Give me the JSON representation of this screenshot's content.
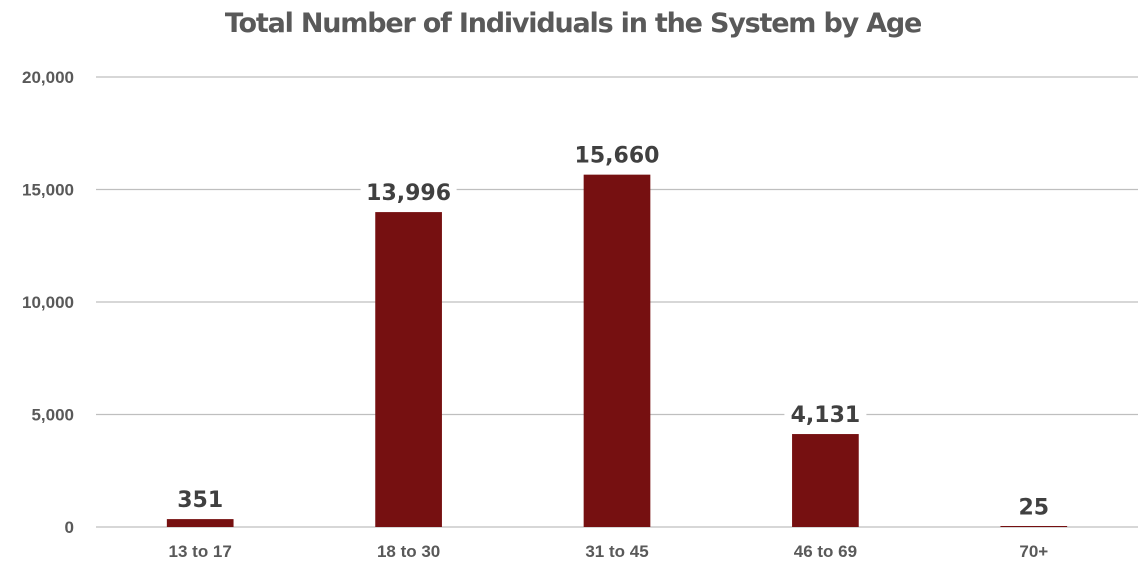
{
  "chart_data": {
    "type": "bar",
    "title": "Total Number of Individuals in the System by Age",
    "xlabel": "",
    "ylabel": "",
    "categories": [
      "13 to 17",
      "18 to 30",
      "31 to 45",
      "46 to 69",
      "70+"
    ],
    "values": [
      351,
      13996,
      15660,
      4131,
      25
    ],
    "value_labels": [
      "351",
      "13,996",
      "15,660",
      "4,131",
      "25"
    ],
    "ylim": [
      0,
      20000
    ],
    "yticks": [
      0,
      5000,
      10000,
      15000,
      20000
    ],
    "ytick_labels": [
      "0",
      "5,000",
      "10,000",
      "15,000",
      "20,000"
    ],
    "grid": true,
    "legend": "none",
    "bar_color": "#761011",
    "gridline_color": "#bfbfbf",
    "text_color": "#595959"
  }
}
